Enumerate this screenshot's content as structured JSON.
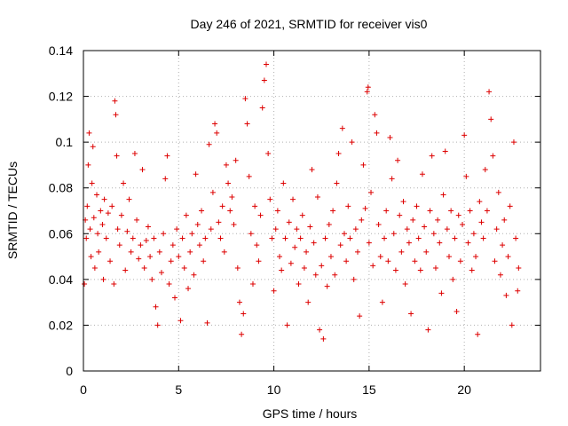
{
  "chart_data": {
    "type": "scatter",
    "title": "Day 246 of 2021, SRMTID for receiver vis0",
    "xlabel": "GPS time / hours",
    "ylabel": "SRMTID / TECUs",
    "xlim": [
      0,
      24
    ],
    "ylim": [
      0,
      0.14
    ],
    "xticks": [
      0,
      5,
      10,
      15,
      20
    ],
    "xtick_labels": [
      "0",
      "5",
      "10",
      "15",
      "20"
    ],
    "yticks": [
      0,
      0.02,
      0.04,
      0.06,
      0.08,
      0.1,
      0.12,
      0.14
    ],
    "ytick_labels": [
      "0",
      "0.02",
      "0.04",
      "0.06",
      "0.08",
      "0.1",
      "0.12",
      "0.14"
    ],
    "grid": true,
    "marker": "plus",
    "color": "#dd0000",
    "series": [
      {
        "name": "vis0 SRMTID",
        "points": [
          [
            0.05,
            0.038
          ],
          [
            0.1,
            0.066
          ],
          [
            0.15,
            0.058
          ],
          [
            0.2,
            0.072
          ],
          [
            0.25,
            0.09
          ],
          [
            0.3,
            0.104
          ],
          [
            0.35,
            0.062
          ],
          [
            0.4,
            0.05
          ],
          [
            0.45,
            0.082
          ],
          [
            0.5,
            0.098
          ],
          [
            0.55,
            0.067
          ],
          [
            0.6,
            0.045
          ],
          [
            0.7,
            0.077
          ],
          [
            0.75,
            0.06
          ],
          [
            0.8,
            0.052
          ],
          [
            0.9,
            0.07
          ],
          [
            1.0,
            0.064
          ],
          [
            1.05,
            0.04
          ],
          [
            1.1,
            0.075
          ],
          [
            1.2,
            0.058
          ],
          [
            1.3,
            0.069
          ],
          [
            1.4,
            0.048
          ],
          [
            1.5,
            0.072
          ],
          [
            1.6,
            0.038
          ],
          [
            1.65,
            0.118
          ],
          [
            1.7,
            0.112
          ],
          [
            1.75,
            0.094
          ],
          [
            1.8,
            0.062
          ],
          [
            1.9,
            0.055
          ],
          [
            2.0,
            0.068
          ],
          [
            2.1,
            0.082
          ],
          [
            2.2,
            0.044
          ],
          [
            2.3,
            0.061
          ],
          [
            2.4,
            0.075
          ],
          [
            2.5,
            0.052
          ],
          [
            2.6,
            0.058
          ],
          [
            2.7,
            0.095
          ],
          [
            2.8,
            0.066
          ],
          [
            2.9,
            0.049
          ],
          [
            3.0,
            0.055
          ],
          [
            3.1,
            0.088
          ],
          [
            3.2,
            0.045
          ],
          [
            3.3,
            0.057
          ],
          [
            3.4,
            0.063
          ],
          [
            3.5,
            0.05
          ],
          [
            3.6,
            0.04
          ],
          [
            3.7,
            0.058
          ],
          [
            3.8,
            0.028
          ],
          [
            3.9,
            0.02
          ],
          [
            4.0,
            0.052
          ],
          [
            4.1,
            0.043
          ],
          [
            4.2,
            0.06
          ],
          [
            4.3,
            0.084
          ],
          [
            4.4,
            0.094
          ],
          [
            4.5,
            0.038
          ],
          [
            4.6,
            0.048
          ],
          [
            4.7,
            0.055
          ],
          [
            4.8,
            0.032
          ],
          [
            4.9,
            0.062
          ],
          [
            5.0,
            0.05
          ],
          [
            5.1,
            0.022
          ],
          [
            5.2,
            0.058
          ],
          [
            5.3,
            0.045
          ],
          [
            5.4,
            0.068
          ],
          [
            5.5,
            0.036
          ],
          [
            5.6,
            0.052
          ],
          [
            5.7,
            0.06
          ],
          [
            5.8,
            0.042
          ],
          [
            5.9,
            0.086
          ],
          [
            6.0,
            0.064
          ],
          [
            6.1,
            0.055
          ],
          [
            6.2,
            0.07
          ],
          [
            6.3,
            0.048
          ],
          [
            6.4,
            0.058
          ],
          [
            6.5,
            0.021
          ],
          [
            6.6,
            0.099
          ],
          [
            6.7,
            0.062
          ],
          [
            6.8,
            0.078
          ],
          [
            6.9,
            0.108
          ],
          [
            7.0,
            0.104
          ],
          [
            7.1,
            0.065
          ],
          [
            7.2,
            0.058
          ],
          [
            7.3,
            0.072
          ],
          [
            7.4,
            0.052
          ],
          [
            7.5,
            0.09
          ],
          [
            7.6,
            0.082
          ],
          [
            7.7,
            0.07
          ],
          [
            7.8,
            0.076
          ],
          [
            7.9,
            0.064
          ],
          [
            8.0,
            0.092
          ],
          [
            8.1,
            0.045
          ],
          [
            8.2,
            0.03
          ],
          [
            8.3,
            0.016
          ],
          [
            8.4,
            0.025
          ],
          [
            8.5,
            0.119
          ],
          [
            8.6,
            0.108
          ],
          [
            8.7,
            0.085
          ],
          [
            8.8,
            0.06
          ],
          [
            8.9,
            0.038
          ],
          [
            9.0,
            0.072
          ],
          [
            9.1,
            0.055
          ],
          [
            9.2,
            0.048
          ],
          [
            9.3,
            0.068
          ],
          [
            9.4,
            0.115
          ],
          [
            9.5,
            0.127
          ],
          [
            9.6,
            0.134
          ],
          [
            9.7,
            0.095
          ],
          [
            9.8,
            0.075
          ],
          [
            9.9,
            0.058
          ],
          [
            10.0,
            0.035
          ],
          [
            10.1,
            0.062
          ],
          [
            10.2,
            0.07
          ],
          [
            10.3,
            0.05
          ],
          [
            10.4,
            0.044
          ],
          [
            10.5,
            0.082
          ],
          [
            10.6,
            0.058
          ],
          [
            10.7,
            0.02
          ],
          [
            10.8,
            0.065
          ],
          [
            10.9,
            0.047
          ],
          [
            11.0,
            0.075
          ],
          [
            11.1,
            0.054
          ],
          [
            11.2,
            0.062
          ],
          [
            11.3,
            0.038
          ],
          [
            11.4,
            0.058
          ],
          [
            11.5,
            0.068
          ],
          [
            11.6,
            0.045
          ],
          [
            11.7,
            0.052
          ],
          [
            11.8,
            0.03
          ],
          [
            11.9,
            0.063
          ],
          [
            12.0,
            0.088
          ],
          [
            12.1,
            0.056
          ],
          [
            12.2,
            0.042
          ],
          [
            12.3,
            0.076
          ],
          [
            12.4,
            0.018
          ],
          [
            12.5,
            0.046
          ],
          [
            12.6,
            0.014
          ],
          [
            12.7,
            0.058
          ],
          [
            12.8,
            0.037
          ],
          [
            12.9,
            0.064
          ],
          [
            13.0,
            0.05
          ],
          [
            13.1,
            0.07
          ],
          [
            13.2,
            0.042
          ],
          [
            13.3,
            0.082
          ],
          [
            13.4,
            0.095
          ],
          [
            13.5,
            0.055
          ],
          [
            13.6,
            0.106
          ],
          [
            13.7,
            0.06
          ],
          [
            13.8,
            0.048
          ],
          [
            13.9,
            0.072
          ],
          [
            14.0,
            0.058
          ],
          [
            14.1,
            0.1
          ],
          [
            14.2,
            0.04
          ],
          [
            14.3,
            0.062
          ],
          [
            14.4,
            0.052
          ],
          [
            14.5,
            0.024
          ],
          [
            14.6,
            0.066
          ],
          [
            14.7,
            0.09
          ],
          [
            14.8,
            0.071
          ],
          [
            14.9,
            0.122
          ],
          [
            14.95,
            0.124
          ],
          [
            15.0,
            0.056
          ],
          [
            15.1,
            0.078
          ],
          [
            15.2,
            0.046
          ],
          [
            15.3,
            0.112
          ],
          [
            15.4,
            0.104
          ],
          [
            15.5,
            0.064
          ],
          [
            15.6,
            0.05
          ],
          [
            15.7,
            0.03
          ],
          [
            15.8,
            0.058
          ],
          [
            15.9,
            0.07
          ],
          [
            16.0,
            0.048
          ],
          [
            16.1,
            0.102
          ],
          [
            16.2,
            0.084
          ],
          [
            16.3,
            0.06
          ],
          [
            16.4,
            0.044
          ],
          [
            16.5,
            0.092
          ],
          [
            16.6,
            0.068
          ],
          [
            16.7,
            0.052
          ],
          [
            16.8,
            0.074
          ],
          [
            16.9,
            0.038
          ],
          [
            17.0,
            0.062
          ],
          [
            17.1,
            0.056
          ],
          [
            17.2,
            0.025
          ],
          [
            17.3,
            0.066
          ],
          [
            17.4,
            0.048
          ],
          [
            17.5,
            0.072
          ],
          [
            17.6,
            0.058
          ],
          [
            17.7,
            0.044
          ],
          [
            17.8,
            0.086
          ],
          [
            17.9,
            0.063
          ],
          [
            18.0,
            0.052
          ],
          [
            18.1,
            0.018
          ],
          [
            18.2,
            0.07
          ],
          [
            18.3,
            0.094
          ],
          [
            18.4,
            0.06
          ],
          [
            18.5,
            0.045
          ],
          [
            18.6,
            0.066
          ],
          [
            18.7,
            0.056
          ],
          [
            18.8,
            0.034
          ],
          [
            18.9,
            0.077
          ],
          [
            19.0,
            0.096
          ],
          [
            19.1,
            0.062
          ],
          [
            19.2,
            0.05
          ],
          [
            19.3,
            0.07
          ],
          [
            19.4,
            0.04
          ],
          [
            19.5,
            0.058
          ],
          [
            19.6,
            0.026
          ],
          [
            19.7,
            0.068
          ],
          [
            19.8,
            0.048
          ],
          [
            19.9,
            0.064
          ],
          [
            20.0,
            0.103
          ],
          [
            20.1,
            0.085
          ],
          [
            20.2,
            0.056
          ],
          [
            20.3,
            0.07
          ],
          [
            20.4,
            0.044
          ],
          [
            20.5,
            0.06
          ],
          [
            20.6,
            0.05
          ],
          [
            20.7,
            0.016
          ],
          [
            20.8,
            0.074
          ],
          [
            20.9,
            0.065
          ],
          [
            21.0,
            0.058
          ],
          [
            21.1,
            0.088
          ],
          [
            21.2,
            0.07
          ],
          [
            21.3,
            0.122
          ],
          [
            21.4,
            0.11
          ],
          [
            21.5,
            0.094
          ],
          [
            21.6,
            0.048
          ],
          [
            21.7,
            0.062
          ],
          [
            21.8,
            0.078
          ],
          [
            21.9,
            0.042
          ],
          [
            22.0,
            0.055
          ],
          [
            22.1,
            0.066
          ],
          [
            22.2,
            0.033
          ],
          [
            22.3,
            0.05
          ],
          [
            22.4,
            0.072
          ],
          [
            22.5,
            0.02
          ],
          [
            22.6,
            0.1
          ],
          [
            22.7,
            0.058
          ],
          [
            22.8,
            0.035
          ],
          [
            22.85,
            0.045
          ]
        ]
      }
    ]
  }
}
